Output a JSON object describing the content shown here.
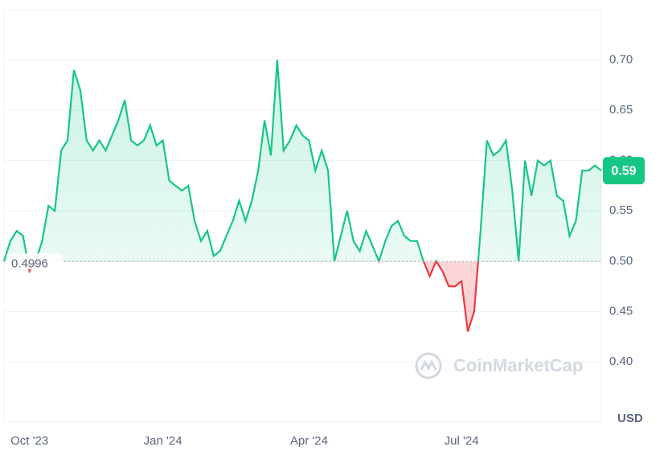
{
  "chart_data": {
    "type": "line",
    "categories": [
      null,
      null,
      null,
      null,
      "Oct '23",
      null,
      null,
      null,
      null,
      null,
      null,
      null,
      null,
      null,
      null,
      null,
      null,
      null,
      null,
      null,
      null,
      null,
      null,
      null,
      null,
      "Jan '24",
      null,
      null,
      null,
      null,
      null,
      null,
      null,
      null,
      null,
      null,
      null,
      null,
      null,
      null,
      null,
      null,
      null,
      null,
      null,
      null,
      null,
      null,
      "Apr '24",
      null,
      null,
      null,
      null,
      null,
      null,
      null,
      null,
      null,
      null,
      null,
      null,
      null,
      null,
      null,
      null,
      null,
      null,
      null,
      null,
      null,
      null,
      null,
      "Jul '24",
      null,
      null,
      null,
      null,
      null,
      null,
      null,
      null,
      null,
      null,
      null,
      null,
      null,
      null,
      null,
      null,
      null,
      null,
      null,
      null,
      null,
      null
    ],
    "series": [
      {
        "name": null,
        "color": "#16c784",
        "below_color": "#ea3943",
        "values": [
          0.5,
          0.52,
          0.53,
          0.525,
          0.49,
          0.5,
          0.52,
          0.555,
          0.55,
          0.61,
          0.62,
          0.69,
          0.67,
          0.62,
          0.61,
          0.62,
          0.61,
          0.625,
          0.64,
          0.66,
          0.62,
          0.615,
          0.62,
          0.635,
          0.615,
          0.62,
          0.58,
          0.575,
          0.57,
          0.575,
          0.54,
          0.52,
          0.53,
          0.505,
          0.51,
          0.525,
          0.54,
          0.56,
          0.54,
          0.56,
          0.59,
          0.64,
          0.605,
          0.7,
          0.61,
          0.62,
          0.635,
          0.625,
          0.62,
          0.59,
          0.61,
          0.59,
          0.5,
          0.525,
          0.55,
          0.52,
          0.51,
          0.53,
          0.515,
          0.5,
          0.52,
          0.535,
          0.54,
          0.525,
          0.52,
          0.52,
          0.5,
          0.485,
          0.5,
          0.49,
          0.475,
          0.475,
          0.48,
          0.43,
          0.45,
          0.53,
          0.62,
          0.605,
          0.61,
          0.62,
          0.57,
          0.5,
          0.6,
          0.565,
          0.6,
          0.595,
          0.6,
          0.565,
          0.56,
          0.525,
          0.54,
          0.59,
          0.59,
          0.595,
          0.59
        ]
      }
    ],
    "ylim": [
      0.34,
      0.75
    ],
    "yticks": [
      {
        "value": 0.4,
        "label": "0.40"
      },
      0.45,
      {
        "value": 0.5,
        "label": "0.50"
      },
      0.55,
      {
        "value": 0.6,
        "label": "0.60"
      },
      0.65,
      {
        "value": 0.7,
        "label": "0.70"
      }
    ],
    "baseline": 0.4996,
    "last_price": {
      "value": 0.59,
      "label": "0.59"
    },
    "unit": "USD",
    "watermark": "CoinMarketCap",
    "grid": true
  }
}
